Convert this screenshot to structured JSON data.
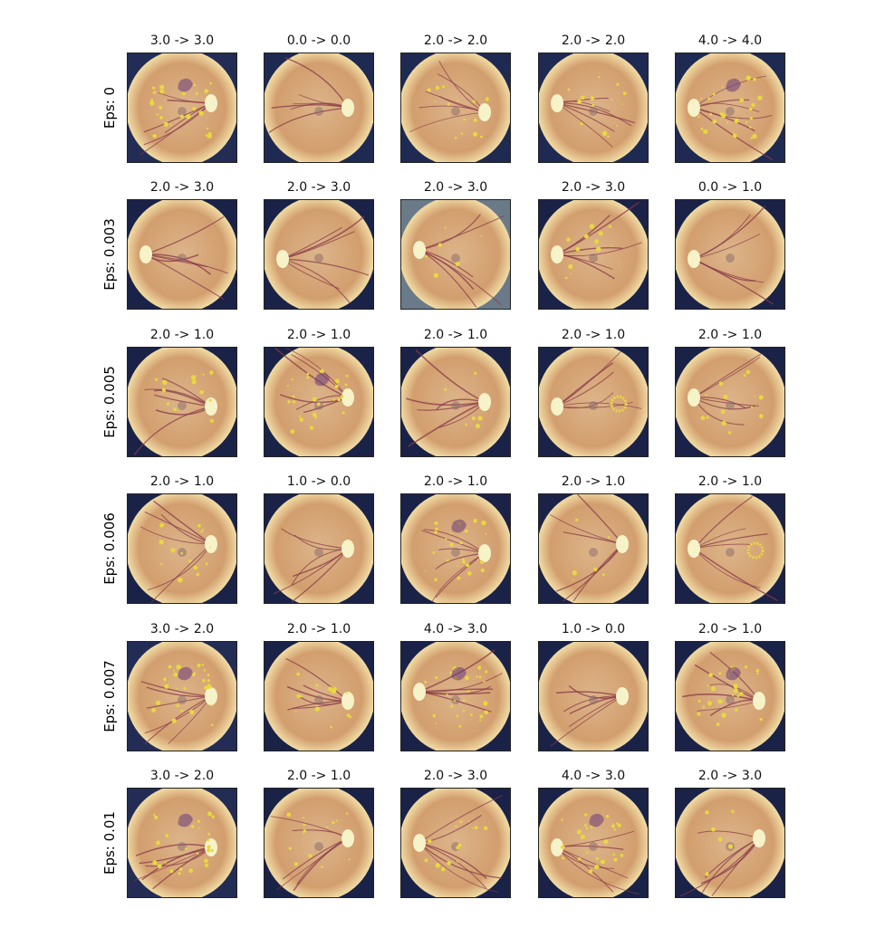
{
  "rows": [
    {
      "label": "Eps: 0",
      "cells": [
        {
          "title": "3.0 -> 3.0",
          "disc_side": "right",
          "lesions": "heavy",
          "bg": "#222c55"
        },
        {
          "title": "0.0 -> 0.0",
          "disc_side": "right",
          "lesions": "none",
          "bg": "#1f2a52"
        },
        {
          "title": "2.0 -> 2.0",
          "disc_side": "right",
          "lesions": "medium",
          "bg": "#1f2a52"
        },
        {
          "title": "2.0 -> 2.0",
          "disc_side": "left",
          "lesions": "medium",
          "bg": "#1f2a52"
        },
        {
          "title": "4.0 -> 4.0",
          "disc_side": "left",
          "lesions": "heavy",
          "bg": "#1f2a52"
        }
      ]
    },
    {
      "label": "Eps: 0.003",
      "cells": [
        {
          "title": "2.0 -> 3.0",
          "disc_side": "left",
          "lesions": "none",
          "bg": "#1a2247"
        },
        {
          "title": "2.0 -> 3.0",
          "disc_side": "left",
          "lesions": "none",
          "bg": "#1a2247"
        },
        {
          "title": "2.0 -> 3.0",
          "disc_side": "left",
          "lesions": "light",
          "bg": "#6a7a88"
        },
        {
          "title": "2.0 -> 3.0",
          "disc_side": "left",
          "lesions": "medium",
          "bg": "#1a2247"
        },
        {
          "title": "0.0 -> 1.0",
          "disc_side": "left",
          "lesions": "none",
          "bg": "#1a2247"
        }
      ]
    },
    {
      "label": "Eps: 0.005",
      "cells": [
        {
          "title": "2.0 -> 1.0",
          "disc_side": "right",
          "lesions": "medium",
          "bg": "#1a2247"
        },
        {
          "title": "2.0 -> 1.0",
          "disc_side": "right",
          "lesions": "heavy",
          "bg": "#1a2247"
        },
        {
          "title": "2.0 -> 1.0",
          "disc_side": "right",
          "lesions": "light",
          "bg": "#1a2247"
        },
        {
          "title": "2.0 -> 1.0",
          "disc_side": "left",
          "lesions": "ring",
          "bg": "#1a2247"
        },
        {
          "title": "2.0 -> 1.0",
          "disc_side": "left",
          "lesions": "medium",
          "bg": "#1a2247"
        }
      ]
    },
    {
      "label": "Eps: 0.006",
      "cells": [
        {
          "title": "2.0 -> 1.0",
          "disc_side": "right",
          "lesions": "medium",
          "bg": "#1a2247"
        },
        {
          "title": "1.0 -> 0.0",
          "disc_side": "right",
          "lesions": "none",
          "bg": "#1a2247"
        },
        {
          "title": "2.0 -> 1.0",
          "disc_side": "right",
          "lesions": "heavy",
          "bg": "#1a2247"
        },
        {
          "title": "2.0 -> 1.0",
          "disc_side": "right",
          "lesions": "light",
          "bg": "#1a2247"
        },
        {
          "title": "2.0 -> 1.0",
          "disc_side": "left",
          "lesions": "ring",
          "bg": "#1a2247"
        }
      ]
    },
    {
      "label": "Eps: 0.007",
      "cells": [
        {
          "title": "3.0 -> 2.0",
          "disc_side": "right",
          "lesions": "heavy",
          "bg": "#222c55"
        },
        {
          "title": "2.0 -> 1.0",
          "disc_side": "right",
          "lesions": "medium",
          "bg": "#1a2247"
        },
        {
          "title": "4.0 -> 3.0",
          "disc_side": "left",
          "lesions": "heavy",
          "bg": "#1a2247"
        },
        {
          "title": "1.0 -> 0.0",
          "disc_side": "right",
          "lesions": "none",
          "bg": "#1a2247"
        },
        {
          "title": "2.0 -> 1.0",
          "disc_side": "right",
          "lesions": "heavy",
          "bg": "#1a2247"
        }
      ]
    },
    {
      "label": "Eps: 0.01",
      "cells": [
        {
          "title": "3.0 -> 2.0",
          "disc_side": "right",
          "lesions": "heavy",
          "bg": "#222c55"
        },
        {
          "title": "2.0 -> 1.0",
          "disc_side": "right",
          "lesions": "medium",
          "bg": "#1a2247"
        },
        {
          "title": "2.0 -> 3.0",
          "disc_side": "left",
          "lesions": "medium",
          "bg": "#1a2247"
        },
        {
          "title": "4.0 -> 3.0",
          "disc_side": "left",
          "lesions": "heavy",
          "bg": "#1a2247"
        },
        {
          "title": "2.0 -> 3.0",
          "disc_side": "right",
          "lesions": "light",
          "bg": "#1a2247"
        }
      ]
    }
  ],
  "colors": {
    "fundus_center": "#dcb58a",
    "fundus_mid": "#d29e6e",
    "fundus_edge": "#f3e0a8",
    "disc": "#f7f3c8",
    "vessel": "#8a3a4a",
    "exudate": "#e8d840",
    "lesion_dark": "#6a3a7a"
  }
}
